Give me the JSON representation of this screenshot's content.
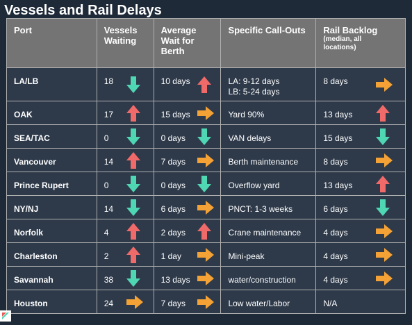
{
  "title": "Vessels and Rail Delays",
  "headers": {
    "port": "Port",
    "vessels": [
      "Vessels",
      "Waiting"
    ],
    "wait": [
      "Average",
      "Wait for",
      "Berth"
    ],
    "callouts": "Specific Call-Outs",
    "rail": "Rail Backlog",
    "rail_sub": [
      "(median, all",
      "locations)"
    ]
  },
  "arrow_colors": {
    "down": "#4fd6b3",
    "up": "#f06a6a",
    "right": "#f4a236"
  },
  "rows": [
    {
      "port": "LA/LB",
      "vessels": "18",
      "vessels_trend": "down",
      "wait": "10 days",
      "wait_trend": "up",
      "callouts": [
        "LA: 9-12 days",
        "LB: 5-24 days"
      ],
      "rail": "8 days",
      "rail_trend": "right"
    },
    {
      "port": "OAK",
      "vessels": "17",
      "vessels_trend": "up",
      "wait": "15 days",
      "wait_trend": "right",
      "callouts": [
        "Yard 90%"
      ],
      "rail": "13 days",
      "rail_trend": "up"
    },
    {
      "port": "SEA/TAC",
      "vessels": "0",
      "vessels_trend": "down",
      "wait": "0 days",
      "wait_trend": "down",
      "callouts": [
        "VAN delays"
      ],
      "rail": "15 days",
      "rail_trend": "down"
    },
    {
      "port": "Vancouver",
      "vessels": "14",
      "vessels_trend": "up",
      "wait": "7 days",
      "wait_trend": "right",
      "callouts": [
        "Berth maintenance"
      ],
      "rail": "8 days",
      "rail_trend": "right"
    },
    {
      "port": "Prince Rupert",
      "vessels": "0",
      "vessels_trend": "down",
      "wait": "0 days",
      "wait_trend": "down",
      "callouts": [
        "Overflow yard"
      ],
      "rail": "13 days",
      "rail_trend": "up"
    },
    {
      "port": "NY/NJ",
      "vessels": "14",
      "vessels_trend": "down",
      "wait": "6 days",
      "wait_trend": "right",
      "callouts": [
        "PNCT: 1-3 weeks"
      ],
      "rail": "6 days",
      "rail_trend": "down"
    },
    {
      "port": "Norfolk",
      "vessels": "4",
      "vessels_trend": "up",
      "wait": "2 days",
      "wait_trend": "up",
      "callouts": [
        "Crane maintenance"
      ],
      "rail": "4 days",
      "rail_trend": "right"
    },
    {
      "port": "Charleston",
      "vessels": "2",
      "vessels_trend": "up",
      "wait": "1 day",
      "wait_trend": "right",
      "callouts": [
        "Mini-peak"
      ],
      "rail": "4 days",
      "rail_trend": "right"
    },
    {
      "port": "Savannah",
      "vessels": "38",
      "vessels_trend": "down",
      "wait": "13 days",
      "wait_trend": "right",
      "callouts": [
        "water/construction"
      ],
      "rail": "4 days",
      "rail_trend": "right"
    },
    {
      "port": "Houston",
      "vessels": "24",
      "vessels_trend": "right",
      "wait": "7 days",
      "wait_trend": "right",
      "callouts": [
        "Low water/Labor"
      ],
      "rail": "N/A",
      "rail_trend": ""
    }
  ]
}
